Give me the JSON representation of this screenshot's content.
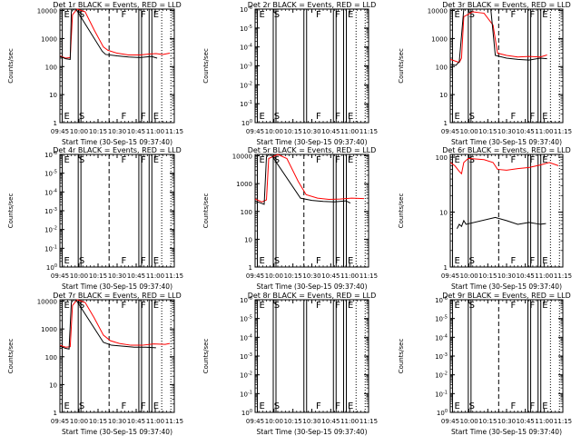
{
  "chart_data": [
    {
      "type": "line",
      "title": "Det 1r BLACK = Events, RED = LLD",
      "xlabel": "Start Time (30-Sep-15 09:37:40)",
      "ylabel": "Counts/sec",
      "y_scale": "log",
      "ytick_labels": [
        "1",
        "10",
        "100",
        "1000",
        "10000"
      ],
      "xtick_labels": [
        "09:45",
        "10:00",
        "10:15",
        "10:30",
        "10:45",
        "11:00",
        "11:15"
      ],
      "markers": [
        {
          "label": "E",
          "style": "solid"
        },
        {
          "label": "S",
          "style": "solid"
        },
        {
          "label": "F",
          "style": "dashed"
        },
        {
          "label": "F",
          "style": "solid"
        },
        {
          "label": "E",
          "style": "solid"
        }
      ],
      "series": [
        {
          "color": "#ff0000",
          "points": [
            [
              0,
              240
            ],
            [
              0.05,
              200
            ],
            [
              0.09,
              210
            ],
            [
              0.11,
              7000
            ],
            [
              0.15,
              12000
            ],
            [
              0.22,
              9000
            ],
            [
              0.3,
              2000
            ],
            [
              0.38,
              500
            ],
            [
              0.42,
              380
            ],
            [
              0.5,
              300
            ],
            [
              0.6,
              260
            ],
            [
              0.7,
              260
            ],
            [
              0.78,
              280
            ],
            [
              0.84,
              290
            ],
            [
              0.9,
              270
            ],
            [
              0.96,
              300
            ]
          ]
        },
        {
          "color": "#000000",
          "points": [
            [
              0,
              230
            ],
            [
              0.05,
              190
            ],
            [
              0.09,
              180
            ],
            [
              0.1,
              9000
            ],
            [
              0.12,
              14000
            ],
            [
              0.14,
              13000
            ],
            [
              0.37,
              350
            ],
            [
              0.4,
              270
            ],
            [
              0.5,
              240
            ],
            [
              0.6,
              220
            ],
            [
              0.7,
              210
            ],
            [
              0.8,
              230
            ],
            [
              0.85,
              200
            ]
          ]
        }
      ]
    },
    {
      "type": "line",
      "title": "Det 2r BLACK = Events, RED = LLD",
      "xlabel": "Start Time (30-Sep-15 09:37:40)",
      "ylabel": "Counts/sec",
      "y_scale": "log",
      "ytick_labels": [
        "10^0",
        "10^-1",
        "10^-2",
        "10^-3",
        "10^-4",
        "10^-5",
        "10^-6"
      ],
      "xtick_labels": [
        "09:45",
        "10:00",
        "10:15",
        "10:30",
        "10:45",
        "11:00",
        "11:15"
      ],
      "markers": [
        {
          "label": "E",
          "style": "solid"
        },
        {
          "label": "S",
          "style": "solid"
        },
        {
          "label": "F",
          "style": "solid"
        },
        {
          "label": "F",
          "style": "solid"
        },
        {
          "label": "E",
          "style": "solid"
        }
      ],
      "series": []
    },
    {
      "type": "line",
      "title": "Det 3r BLACK = Events, RED = LLD",
      "xlabel": "Start Time (30-Sep-15 09:37:40)",
      "ylabel": "Counts/sec",
      "y_scale": "log",
      "ytick_labels": [
        "1",
        "10",
        "100",
        "1000",
        "10000"
      ],
      "xtick_labels": [
        "09:45",
        "10:00",
        "10:15",
        "10:30",
        "10:45",
        "11:00",
        "11:15"
      ],
      "markers": [
        {
          "label": "E",
          "style": "solid"
        },
        {
          "label": "S",
          "style": "solid"
        },
        {
          "label": "F",
          "style": "dashed"
        },
        {
          "label": "F",
          "style": "solid"
        },
        {
          "label": "E",
          "style": "solid"
        }
      ],
      "series": [
        {
          "color": "#ff0000",
          "points": [
            [
              0,
              180
            ],
            [
              0.08,
              140
            ],
            [
              0.1,
              200
            ],
            [
              0.12,
              6000
            ],
            [
              0.2,
              9000
            ],
            [
              0.3,
              8000
            ],
            [
              0.38,
              3000
            ],
            [
              0.42,
              300
            ],
            [
              0.5,
              250
            ],
            [
              0.6,
              220
            ],
            [
              0.7,
              230
            ],
            [
              0.8,
              220
            ],
            [
              0.86,
              260
            ]
          ]
        },
        {
          "color": "#000000",
          "points": [
            [
              0,
              120
            ],
            [
              0.05,
              110
            ],
            [
              0.08,
              150
            ],
            [
              0.12,
              12000
            ],
            [
              0.3,
              12000
            ],
            [
              0.36,
              12000
            ],
            [
              0.4,
              250
            ],
            [
              0.5,
              200
            ],
            [
              0.6,
              180
            ],
            [
              0.7,
              170
            ],
            [
              0.8,
              200
            ],
            [
              0.86,
              190
            ]
          ]
        }
      ]
    },
    {
      "type": "line",
      "title": "Det 4r BLACK = Events, RED = LLD",
      "xlabel": "Start Time (30-Sep-15 09:37:40)",
      "ylabel": "Counts/sec",
      "y_scale": "log",
      "ytick_labels": [
        "10^0",
        "10^-1",
        "10^-2",
        "10^-3",
        "10^-4",
        "10^-5",
        "10^-6"
      ],
      "xtick_labels": [
        "09:45",
        "10:00",
        "10:15",
        "10:30",
        "10:45",
        "11:00",
        "11:15"
      ],
      "markers": [
        {
          "label": "E",
          "style": "solid"
        },
        {
          "label": "S",
          "style": "solid"
        },
        {
          "label": "F",
          "style": "dashed"
        },
        {
          "label": "F",
          "style": "solid"
        },
        {
          "label": "E",
          "style": "solid"
        }
      ],
      "series": []
    },
    {
      "type": "line",
      "title": "Det 5r BLACK = Events, RED = LLD",
      "xlabel": "Start Time (30-Sep-15 09:37:40)",
      "ylabel": "Counts/sec",
      "y_scale": "log",
      "ytick_labels": [
        "1",
        "10",
        "100",
        "1000",
        "10000"
      ],
      "xtick_labels": [
        "09:45",
        "10:00",
        "10:15",
        "10:30",
        "10:45",
        "11:00",
        "11:15"
      ],
      "markers": [
        {
          "label": "E",
          "style": "solid"
        },
        {
          "label": "S",
          "style": "solid"
        },
        {
          "label": "F",
          "style": "dashed"
        },
        {
          "label": "F",
          "style": "solid"
        },
        {
          "label": "E",
          "style": "solid"
        }
      ],
      "series": [
        {
          "color": "#ff0000",
          "points": [
            [
              0,
              280
            ],
            [
              0.06,
              220
            ],
            [
              0.1,
              260
            ],
            [
              0.12,
              8000
            ],
            [
              0.2,
              12000
            ],
            [
              0.28,
              8000
            ],
            [
              0.38,
              1200
            ],
            [
              0.45,
              400
            ],
            [
              0.55,
              300
            ],
            [
              0.65,
              270
            ],
            [
              0.75,
              280
            ],
            [
              0.85,
              300
            ],
            [
              0.96,
              290
            ]
          ]
        },
        {
          "color": "#000000",
          "points": [
            [
              0,
              240
            ],
            [
              0.05,
              200
            ],
            [
              0.08,
              180
            ],
            [
              0.1,
              9000
            ],
            [
              0.12,
              13000
            ],
            [
              0.14,
              12000
            ],
            [
              0.4,
              300
            ],
            [
              0.5,
              250
            ],
            [
              0.6,
              230
            ],
            [
              0.7,
              220
            ],
            [
              0.8,
              240
            ],
            [
              0.84,
              200
            ]
          ]
        }
      ]
    },
    {
      "type": "line",
      "title": "Det 6r BLACK = Events, RED = LLD",
      "xlabel": "Start Time (30-Sep-15 09:37:40)",
      "ylabel": "Counts/sec",
      "y_scale": "log",
      "ytick_labels": [
        "1",
        "10",
        "100"
      ],
      "xtick_labels": [
        "09:45",
        "10:00",
        "10:15",
        "10:30",
        "10:45",
        "11:00",
        "11:15"
      ],
      "markers": [
        {
          "label": "E",
          "style": "solid"
        },
        {
          "label": "S",
          "style": "solid"
        },
        {
          "label": "F",
          "style": "dashed"
        },
        {
          "label": "F",
          "style": "solid"
        },
        {
          "label": "E",
          "style": "solid"
        }
      ],
      "series": [
        {
          "color": "#ff0000",
          "points": [
            [
              0,
              80
            ],
            [
              0.04,
              70
            ],
            [
              0.08,
              55
            ],
            [
              0.1,
              50
            ],
            [
              0.12,
              80
            ],
            [
              0.16,
              95
            ],
            [
              0.3,
              90
            ],
            [
              0.38,
              80
            ],
            [
              0.42,
              60
            ],
            [
              0.5,
              58
            ],
            [
              0.6,
              62
            ],
            [
              0.7,
              65
            ],
            [
              0.8,
              72
            ],
            [
              0.88,
              80
            ],
            [
              0.96,
              70
            ]
          ]
        },
        {
          "color": "#000000",
          "points": [
            [
              0.06,
              5
            ],
            [
              0.08,
              6
            ],
            [
              0.1,
              5.5
            ],
            [
              0.12,
              7
            ],
            [
              0.14,
              6
            ],
            [
              0.4,
              8
            ],
            [
              0.5,
              7
            ],
            [
              0.6,
              6
            ],
            [
              0.7,
              6.5
            ],
            [
              0.8,
              6
            ],
            [
              0.85,
              6.2
            ]
          ]
        }
      ]
    },
    {
      "type": "line",
      "title": "Det 7r BLACK = Events, RED = LLD",
      "xlabel": "Start Time (30-Sep-15 09:37:40)",
      "ylabel": "Counts/sec",
      "y_scale": "log",
      "ytick_labels": [
        "1",
        "10",
        "100",
        "1000",
        "10000"
      ],
      "xtick_labels": [
        "09:45",
        "10:00",
        "10:15",
        "10:30",
        "10:45",
        "11:00",
        "11:15"
      ],
      "markers": [
        {
          "label": "E",
          "style": "solid"
        },
        {
          "label": "S",
          "style": "solid"
        },
        {
          "label": "F",
          "style": "dashed"
        },
        {
          "label": "F",
          "style": "solid"
        },
        {
          "label": "E",
          "style": "solid"
        }
      ],
      "series": [
        {
          "color": "#ff0000",
          "points": [
            [
              0,
              260
            ],
            [
              0.05,
              220
            ],
            [
              0.09,
              230
            ],
            [
              0.11,
              7000
            ],
            [
              0.15,
              12000
            ],
            [
              0.22,
              9000
            ],
            [
              0.3,
              2500
            ],
            [
              0.38,
              600
            ],
            [
              0.44,
              380
            ],
            [
              0.52,
              300
            ],
            [
              0.62,
              260
            ],
            [
              0.72,
              260
            ],
            [
              0.82,
              290
            ],
            [
              0.92,
              280
            ],
            [
              0.96,
              300
            ]
          ]
        },
        {
          "color": "#000000",
          "points": [
            [
              0,
              240
            ],
            [
              0.05,
              200
            ],
            [
              0.08,
              190
            ],
            [
              0.1,
              9000
            ],
            [
              0.12,
              14000
            ],
            [
              0.14,
              13000
            ],
            [
              0.38,
              330
            ],
            [
              0.45,
              260
            ],
            [
              0.55,
              240
            ],
            [
              0.65,
              220
            ],
            [
              0.75,
              220
            ],
            [
              0.84,
              210
            ]
          ]
        }
      ]
    },
    {
      "type": "line",
      "title": "Det 8r BLACK = Events, RED = LLD",
      "xlabel": "Start Time (30-Sep-15 09:37:40)",
      "ylabel": "Counts/sec",
      "y_scale": "log",
      "ytick_labels": [
        "10^0",
        "10^-1",
        "10^-2",
        "10^-3",
        "10^-4",
        "10^-5",
        "10^-6"
      ],
      "xtick_labels": [
        "09:45",
        "10:00",
        "10:15",
        "10:30",
        "10:45",
        "11:00",
        "11:15"
      ],
      "markers": [
        {
          "label": "E",
          "style": "solid"
        },
        {
          "label": "S",
          "style": "solid"
        },
        {
          "label": "F",
          "style": "solid"
        },
        {
          "label": "F",
          "style": "solid"
        },
        {
          "label": "E",
          "style": "solid"
        }
      ],
      "series": []
    },
    {
      "type": "line",
      "title": "Det 9r BLACK = Events, RED = LLD",
      "xlabel": "Start Time (30-Sep-15 09:37:40)",
      "ylabel": "Counts/sec",
      "y_scale": "log",
      "ytick_labels": [
        "10^0",
        "10^-1",
        "10^-2",
        "10^-3",
        "10^-4",
        "10^-5",
        "10^-6"
      ],
      "xtick_labels": [
        "09:45",
        "10:00",
        "10:15",
        "10:30",
        "10:45",
        "11:00",
        "11:15"
      ],
      "markers": [
        {
          "label": "E",
          "style": "solid"
        },
        {
          "label": "S",
          "style": "solid"
        },
        {
          "label": "F",
          "style": "dashed"
        },
        {
          "label": "F",
          "style": "solid"
        },
        {
          "label": "E",
          "style": "solid"
        }
      ],
      "series": []
    }
  ]
}
